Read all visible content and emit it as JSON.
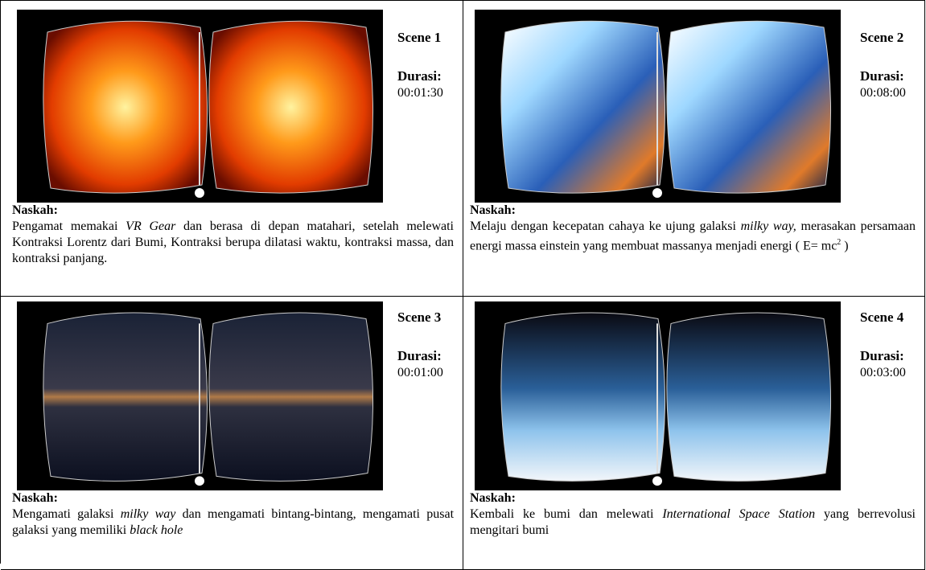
{
  "storyboard": {
    "scenes": [
      {
        "scene": "Scene 1",
        "durasi_label": "Durasi:",
        "durasi": "00:01:30",
        "naskah_label": "Naskah:",
        "naskah": [
          {
            "text": "Pengamat memakai ",
            "style": "normal"
          },
          {
            "text": "VR Gear",
            "style": "italic"
          },
          {
            "text": " dan berasa di depan matahari, setelah melewati Kontraksi Lorentz dari Bumi, Kontraksi berupa dilatasi waktu, kontraksi massa, dan kontraksi panjang.",
            "style": "normal"
          }
        ]
      },
      {
        "scene": "Scene 2",
        "durasi_label": "Durasi:",
        "durasi": "00:08:00",
        "naskah_label": "Naskah:",
        "naskah": [
          {
            "text": "Melaju dengan kecepatan cahaya ke ujung galaksi ",
            "style": "normal"
          },
          {
            "text": "milky way,",
            "style": "italic"
          },
          {
            "text": " merasakan persamaan energi massa einstein yang membuat massanya menjadi energi ( E= mc",
            "style": "normal"
          },
          {
            "text": "2",
            "style": "sup"
          },
          {
            "text": " )",
            "style": "normal"
          }
        ]
      },
      {
        "scene": "Scene 3",
        "durasi_label": "Durasi:",
        "durasi": "00:01:00",
        "naskah_label": "Naskah:",
        "naskah": [
          {
            "text": "Mengamati galaksi ",
            "style": "normal"
          },
          {
            "text": "milky way",
            "style": "italic"
          },
          {
            "text": " dan mengamati bintang-bintang, mengamati pusat galaksi yang memiliki ",
            "style": "normal"
          },
          {
            "text": "black hole",
            "style": "italic"
          }
        ]
      },
      {
        "scene": "Scene 4",
        "durasi_label": "Durasi:",
        "durasi": "00:03:00",
        "naskah_label": "Naskah:",
        "naskah": [
          {
            "text": "Kembali ke bumi dan melewati ",
            "style": "normal"
          },
          {
            "text": "International Space Station",
            "style": "italic"
          },
          {
            "text": " yang berrevolusi mengitari bumi",
            "style": "normal"
          }
        ]
      }
    ]
  }
}
